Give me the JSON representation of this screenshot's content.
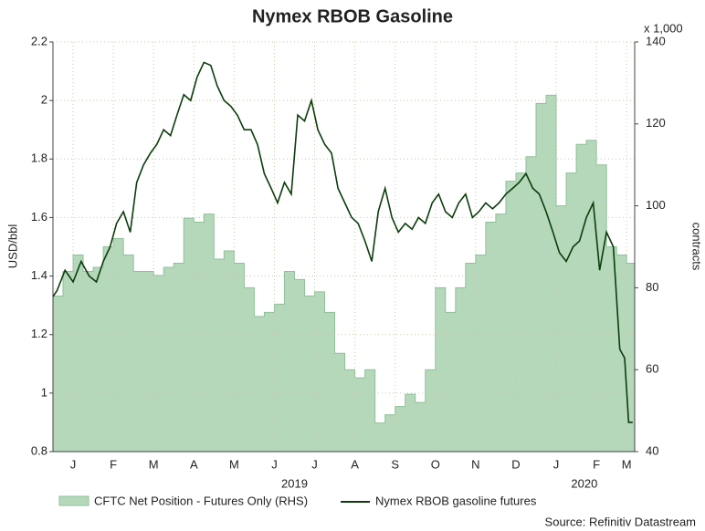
{
  "chart_data": {
    "type": "line",
    "title": "Nymex RBOB Gasoline",
    "ylabel": "USD/bbl",
    "y2label": "contracts",
    "y2unit": "x 1,000",
    "source": "Source: Refinitiv Datastream",
    "xlim": [
      0,
      14.45
    ],
    "xticks": [
      {
        "value": 0.5,
        "label": "J"
      },
      {
        "value": 1.5,
        "label": "F"
      },
      {
        "value": 2.5,
        "label": "M"
      },
      {
        "value": 3.5,
        "label": "A"
      },
      {
        "value": 4.5,
        "label": "M"
      },
      {
        "value": 5.5,
        "label": "J"
      },
      {
        "value": 6.5,
        "label": "J"
      },
      {
        "value": 7.5,
        "label": "A"
      },
      {
        "value": 8.5,
        "label": "S"
      },
      {
        "value": 9.5,
        "label": "O"
      },
      {
        "value": 10.5,
        "label": "N"
      },
      {
        "value": 11.5,
        "label": "D"
      },
      {
        "value": 12.5,
        "label": "J"
      },
      {
        "value": 13.5,
        "label": "F"
      },
      {
        "value": 14.25,
        "label": "M"
      }
    ],
    "years": [
      {
        "value": 6,
        "label": "2019"
      },
      {
        "value": 13.2,
        "label": "2020"
      }
    ],
    "ylim": [
      0.8,
      2.2
    ],
    "yticks": [
      0.8,
      1.0,
      1.2,
      1.4,
      1.6,
      1.8,
      2.0,
      2.2
    ],
    "y2lim": [
      40,
      140
    ],
    "y2ticks": [
      40,
      60,
      80,
      100,
      120,
      140
    ],
    "grid": true,
    "legend": "bottom",
    "series": [
      {
        "name": "CFTC Net Position - Futures Only (RHS)",
        "type": "area",
        "axis": "y2",
        "color": "#b5d8bb",
        "x": [
          0,
          0.25,
          0.5,
          0.75,
          1,
          1.25,
          1.5,
          1.75,
          2,
          2.25,
          2.5,
          2.75,
          3,
          3.25,
          3.5,
          3.75,
          4,
          4.25,
          4.5,
          4.75,
          5,
          5.25,
          5.5,
          5.75,
          6,
          6.25,
          6.5,
          6.75,
          7,
          7.25,
          7.5,
          7.75,
          8,
          8.25,
          8.5,
          8.75,
          9,
          9.25,
          9.5,
          9.75,
          10,
          10.25,
          10.5,
          10.75,
          11,
          11.25,
          11.5,
          11.75,
          12,
          12.25,
          12.5,
          12.75,
          13,
          13.25,
          13.5,
          13.75,
          14,
          14.25
        ],
        "values": [
          78,
          84,
          88,
          84,
          85,
          90,
          92,
          88,
          84,
          84,
          83,
          85,
          86,
          97,
          96,
          98,
          87,
          89,
          86,
          80,
          73,
          74,
          76,
          84,
          82,
          78,
          79,
          74,
          64,
          60,
          58,
          60,
          47,
          49,
          51,
          54,
          52,
          60,
          80,
          74,
          80,
          86,
          88,
          96,
          98,
          106,
          108,
          112,
          125,
          127,
          100,
          108,
          115,
          116,
          110,
          90,
          88,
          86
        ]
      },
      {
        "name": "Nymex RBOB gasoline futures",
        "type": "line",
        "color": "#0b3d0b",
        "x": [
          0,
          0.1,
          0.3,
          0.5,
          0.7,
          0.9,
          1.08,
          1.25,
          1.42,
          1.58,
          1.75,
          1.92,
          2.08,
          2.25,
          2.42,
          2.58,
          2.75,
          2.92,
          3.08,
          3.25,
          3.42,
          3.58,
          3.75,
          3.92,
          4.08,
          4.25,
          4.42,
          4.58,
          4.75,
          4.92,
          5.08,
          5.25,
          5.42,
          5.58,
          5.75,
          5.92,
          6.08,
          6.25,
          6.42,
          6.58,
          6.75,
          6.92,
          7.08,
          7.25,
          7.42,
          7.58,
          7.75,
          7.92,
          8.08,
          8.25,
          8.42,
          8.58,
          8.75,
          8.92,
          9.08,
          9.25,
          9.42,
          9.58,
          9.75,
          9.92,
          10.08,
          10.25,
          10.42,
          10.58,
          10.75,
          10.92,
          11.08,
          11.25,
          11.42,
          11.58,
          11.75,
          11.92,
          12.08,
          12.25,
          12.42,
          12.58,
          12.75,
          12.92,
          13.08,
          13.25,
          13.42,
          13.58,
          13.75,
          13.92,
          14.08,
          14.2,
          14.3,
          14.4
        ],
        "values": [
          1.33,
          1.35,
          1.42,
          1.38,
          1.45,
          1.4,
          1.38,
          1.45,
          1.5,
          1.58,
          1.62,
          1.55,
          1.72,
          1.78,
          1.82,
          1.85,
          1.9,
          1.88,
          1.95,
          2.02,
          2.0,
          2.08,
          2.13,
          2.12,
          2.05,
          2.0,
          1.98,
          1.95,
          1.9,
          1.9,
          1.85,
          1.75,
          1.7,
          1.65,
          1.72,
          1.68,
          1.95,
          1.93,
          2.0,
          1.9,
          1.85,
          1.82,
          1.7,
          1.65,
          1.6,
          1.58,
          1.52,
          1.45,
          1.62,
          1.7,
          1.6,
          1.55,
          1.58,
          1.56,
          1.6,
          1.58,
          1.65,
          1.68,
          1.62,
          1.6,
          1.65,
          1.68,
          1.6,
          1.62,
          1.65,
          1.63,
          1.65,
          1.68,
          1.7,
          1.72,
          1.75,
          1.7,
          1.68,
          1.62,
          1.55,
          1.48,
          1.45,
          1.5,
          1.52,
          1.6,
          1.65,
          1.42,
          1.55,
          1.5,
          1.15,
          1.12,
          0.9,
          0.9
        ]
      }
    ]
  }
}
